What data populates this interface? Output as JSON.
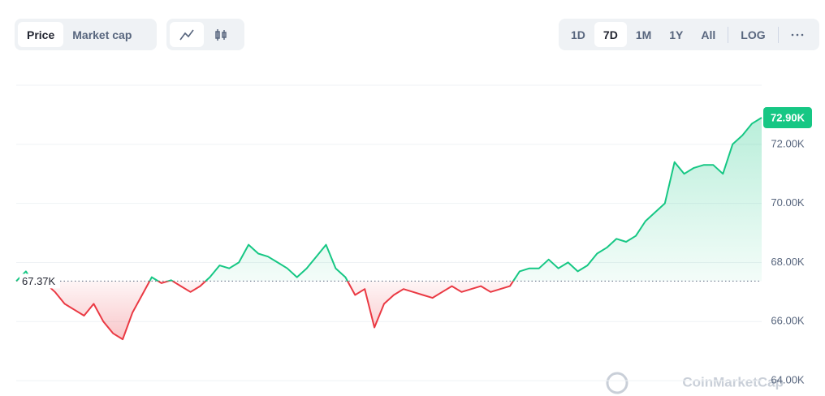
{
  "toolbar": {
    "tabs": [
      "Price",
      "Market cap"
    ],
    "active_tab": 0,
    "ranges": [
      "1D",
      "7D",
      "1M",
      "1Y",
      "All"
    ],
    "active_range": 1,
    "log": "LOG"
  },
  "watermark": "CoinMarketCap",
  "chart_data": {
    "type": "line",
    "values": [
      67370,
      67700,
      67200,
      67300,
      67000,
      66600,
      66400,
      66200,
      66600,
      66000,
      65600,
      65400,
      66300,
      66900,
      67500,
      67300,
      67400,
      67200,
      67000,
      67200,
      67500,
      67900,
      67800,
      68000,
      68600,
      68300,
      68200,
      68000,
      67800,
      67500,
      67800,
      68200,
      68600,
      67800,
      67500,
      66900,
      67100,
      65800,
      66600,
      66900,
      67100,
      67000,
      66900,
      66800,
      67000,
      67200,
      67000,
      67100,
      67200,
      67000,
      67100,
      67200,
      67700,
      67800,
      67800,
      68100,
      67800,
      68000,
      67700,
      67900,
      68300,
      68500,
      68800,
      68700,
      68900,
      69400,
      69700,
      70000,
      71400,
      71000,
      71200,
      71300,
      71300,
      71000,
      72000,
      72300,
      72700,
      72900
    ],
    "baseline": {
      "value": 67370,
      "label": "67.37K"
    },
    "last": {
      "value": 72900,
      "label": "72.90K"
    },
    "up_color": "#16c784",
    "down_color": "#ea3943",
    "ylim": [
      63480,
      74000
    ],
    "yticks": [
      {
        "value": 64000,
        "label": "64.00K"
      },
      {
        "value": 66000,
        "label": "66.00K"
      },
      {
        "value": 68000,
        "label": "68.00K"
      },
      {
        "value": 70000,
        "label": "70.00K"
      },
      {
        "value": 72000,
        "label": "72.00K"
      }
    ],
    "grid": true
  }
}
